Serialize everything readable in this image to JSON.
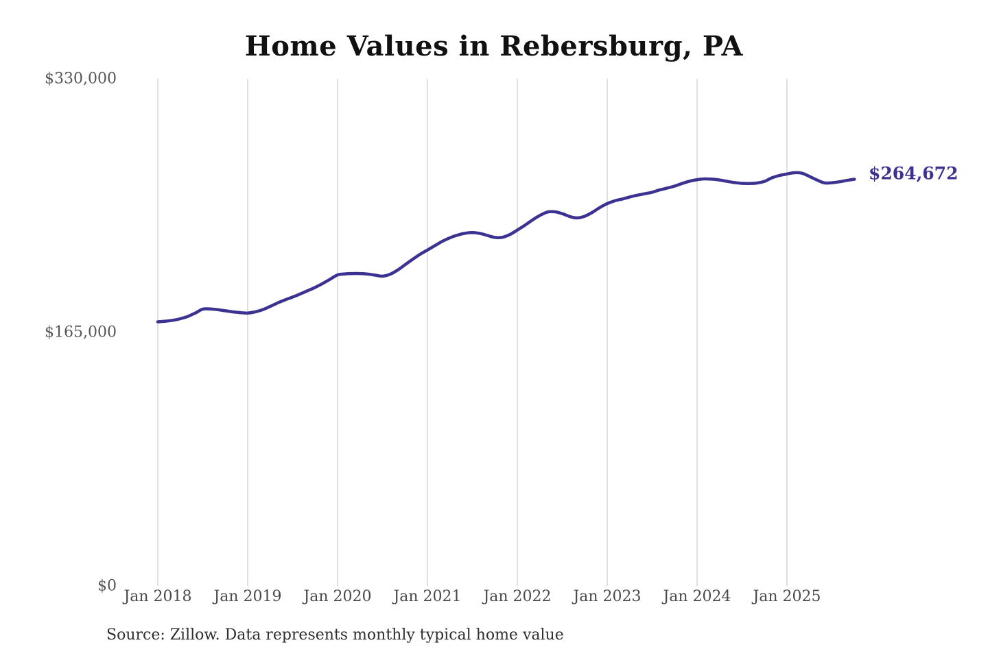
{
  "title": "Home Values in Rebersburg, PA",
  "end_label": "$264,672",
  "source": "Source: Zillow. Data represents monthly typical home value",
  "colors": {
    "line": "#3b3292",
    "end_label": "#3b3292",
    "gridline": "#cccccc",
    "title": "#111111",
    "y_tick_text": "#565656",
    "x_tick_text": "#4a4a4a",
    "source_text": "#2e2e2e",
    "background": "#ffffff"
  },
  "chart_data": {
    "type": "line",
    "title": "Home Values in Rebersburg, PA",
    "xlabel": "",
    "ylabel": "",
    "ylim": [
      0,
      330000
    ],
    "grid": "vertical-only",
    "legend": "none",
    "line_width": 4.5,
    "end_annotation": "$264,672",
    "last_value": 264672,
    "y_tick_values": [
      0,
      165000,
      330000
    ],
    "y_tick_labels": [
      "$0",
      "$165,000",
      "$330,000"
    ],
    "x_tick_labels": [
      "Jan 2018",
      "Jan 2019",
      "Jan 2020",
      "Jan 2021",
      "Jan 2022",
      "Jan 2023",
      "Jan 2024",
      "Jan 2025"
    ],
    "x": [
      "2018-01",
      "2018-02",
      "2018-03",
      "2018-04",
      "2018-05",
      "2018-06",
      "2018-07",
      "2018-08",
      "2018-09",
      "2018-10",
      "2018-11",
      "2018-12",
      "2019-01",
      "2019-02",
      "2019-03",
      "2019-04",
      "2019-05",
      "2019-06",
      "2019-07",
      "2019-08",
      "2019-09",
      "2019-10",
      "2019-11",
      "2019-12",
      "2020-01",
      "2020-02",
      "2020-03",
      "2020-04",
      "2020-05",
      "2020-06",
      "2020-07",
      "2020-08",
      "2020-09",
      "2020-10",
      "2020-11",
      "2020-12",
      "2021-01",
      "2021-02",
      "2021-03",
      "2021-04",
      "2021-05",
      "2021-06",
      "2021-07",
      "2021-08",
      "2021-09",
      "2021-10",
      "2021-11",
      "2021-12",
      "2022-01",
      "2022-02",
      "2022-03",
      "2022-04",
      "2022-05",
      "2022-06",
      "2022-07",
      "2022-08",
      "2022-09",
      "2022-10",
      "2022-11",
      "2022-12",
      "2023-01",
      "2023-02",
      "2023-03",
      "2023-04",
      "2023-05",
      "2023-06",
      "2023-07",
      "2023-08",
      "2023-09",
      "2023-10",
      "2023-11",
      "2023-12",
      "2024-01",
      "2024-02",
      "2024-03",
      "2024-04",
      "2024-05",
      "2024-06",
      "2024-07",
      "2024-08",
      "2024-09",
      "2024-10",
      "2024-11",
      "2024-12",
      "2025-01",
      "2025-02",
      "2025-03",
      "2025-04",
      "2025-05",
      "2025-06",
      "2025-07",
      "2025-08",
      "2025-09",
      "2025-10"
    ],
    "values": [
      171900,
      172300,
      172900,
      173900,
      175400,
      177600,
      180100,
      180300,
      179800,
      179100,
      178400,
      177900,
      177600,
      178400,
      179800,
      181900,
      184200,
      186200,
      188000,
      190000,
      192100,
      194300,
      196800,
      199600,
      202400,
      203100,
      203300,
      203300,
      203000,
      202300,
      201600,
      202800,
      205500,
      209000,
      212500,
      215800,
      218600,
      221500,
      224300,
      226600,
      228300,
      229500,
      230000,
      229400,
      228100,
      226800,
      226900,
      228700,
      231600,
      234700,
      238100,
      241100,
      243300,
      243500,
      242300,
      240400,
      239500,
      240600,
      243100,
      246200,
      248800,
      250600,
      251800,
      253100,
      254300,
      255200,
      256200,
      257700,
      258900,
      260200,
      261900,
      263400,
      264400,
      264900,
      264700,
      264200,
      263300,
      262500,
      262000,
      261900,
      262200,
      263300,
      265600,
      267100,
      268100,
      268900,
      268600,
      266500,
      264200,
      262300,
      262400,
      263000,
      263900,
      264672
    ]
  }
}
